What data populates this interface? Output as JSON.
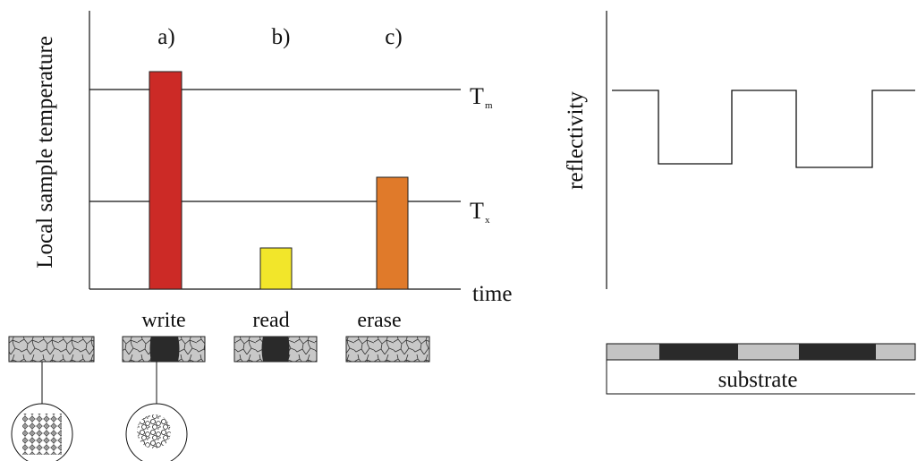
{
  "left_panel": {
    "y_axis_label": "Local sample temperature",
    "x_axis_label": "time",
    "thresholds": [
      {
        "letter": "T",
        "subscript": "m"
      },
      {
        "letter": "T",
        "subscript": "x"
      }
    ],
    "pulses": [
      {
        "step": "a)",
        "operation": "write",
        "color": "#cc2a26"
      },
      {
        "step": "b)",
        "operation": "read",
        "color": "#f2e62a"
      },
      {
        "step": "c)",
        "operation": "erase",
        "color": "#e07a2a"
      }
    ]
  },
  "right_panel": {
    "y_axis_label": "reflectivity",
    "substrate_label": "substrate"
  },
  "colors": {
    "line": "#111111",
    "crystal_fill": "#c8c8c8",
    "amorphous_mark": "#2a2a2a",
    "track_light": "#c4c4c4"
  }
}
